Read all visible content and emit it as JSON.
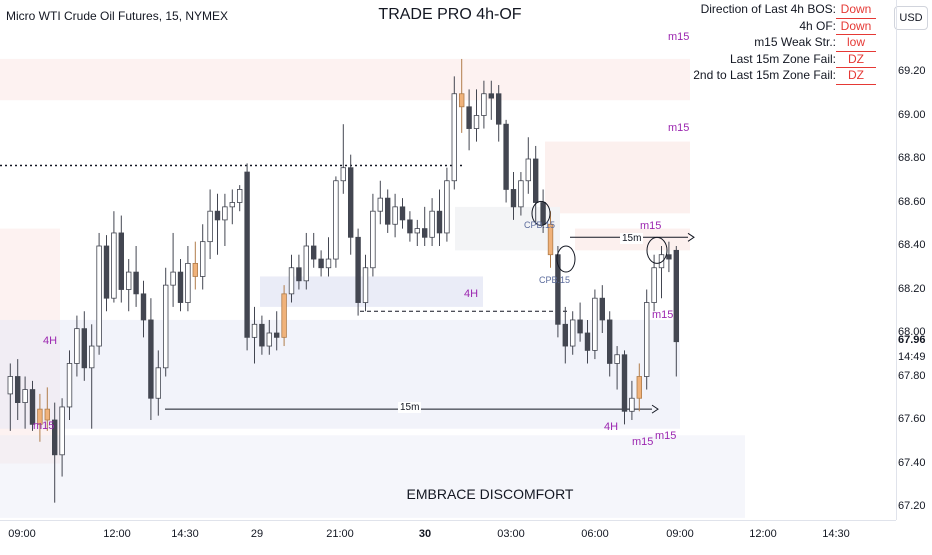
{
  "header": {
    "symbol": "Micro WTI Crude Oil Futures, 15, NYMEX",
    "indicator_title": "TRADE PRO 4h-OF",
    "currency": "USD"
  },
  "info_panel": [
    {
      "label": "Direction of Last 4h BOS:",
      "value": "Down"
    },
    {
      "label": "4h OF:",
      "value": "Down"
    },
    {
      "label": "m15 Weak Str.:",
      "value": "low"
    },
    {
      "label": "Last 15m Zone Fail:",
      "value": "DZ"
    },
    {
      "label": "2nd to Last 15m Zone Fail:",
      "value": "DZ"
    }
  ],
  "caption": "EMBRACE DISCOMFORT",
  "price_axis": {
    "ticks": [
      "69.20",
      "69.00",
      "68.80",
      "68.60",
      "68.40",
      "68.20",
      "68.00",
      "67.80",
      "67.60",
      "67.40",
      "67.20"
    ],
    "last_price": "67.96",
    "countdown": "14:49"
  },
  "time_axis": {
    "labels": [
      "09:00",
      "12:00",
      "14:30",
      "29",
      "21:00",
      "30",
      "03:00",
      "06:00",
      "09:00",
      "12:00",
      "14:30"
    ],
    "bold": [
      "30"
    ]
  },
  "annotations": {
    "m15": "m15",
    "h4": "4H",
    "m15_line": "15m",
    "cpb": "CPB.15"
  },
  "colors": {
    "up_candle_body": "#ffffff",
    "down_candle": "#434651",
    "highlight_candle": "#f0b27a",
    "supply_zone": "#fbe9e7",
    "demand_zone": "#e8eaf6",
    "label_purple": "#9c27b0",
    "value_red": "#e53935"
  },
  "chart_data": {
    "type": "candlestick",
    "title": "TRADE PRO 4h-OF",
    "ylim": [
      67.15,
      69.35
    ],
    "x_tick_labels": [
      "09:00",
      "12:00",
      "14:30",
      "29",
      "21:00",
      "30",
      "03:00",
      "06:00",
      "09:00",
      "12:00",
      "14:30"
    ],
    "last_price": 67.96,
    "candles": [
      {
        "o": 67.72,
        "h": 67.86,
        "l": 67.55,
        "c": 67.8
      },
      {
        "o": 67.8,
        "h": 67.88,
        "l": 67.6,
        "c": 67.68
      },
      {
        "o": 67.68,
        "h": 67.8,
        "l": 67.56,
        "c": 67.74
      },
      {
        "o": 67.74,
        "h": 67.78,
        "l": 67.55,
        "c": 67.58
      },
      {
        "o": 67.58,
        "h": 67.72,
        "l": 67.5,
        "c": 67.65
      },
      {
        "o": 67.65,
        "h": 67.75,
        "l": 67.55,
        "c": 67.6
      },
      {
        "o": 67.6,
        "h": 67.68,
        "l": 67.22,
        "c": 67.44
      },
      {
        "o": 67.44,
        "h": 67.7,
        "l": 67.34,
        "c": 67.66
      },
      {
        "o": 67.66,
        "h": 67.92,
        "l": 67.6,
        "c": 67.86
      },
      {
        "o": 67.86,
        "h": 68.08,
        "l": 67.8,
        "c": 68.02
      },
      {
        "o": 68.02,
        "h": 68.1,
        "l": 67.78,
        "c": 67.84
      },
      {
        "o": 67.84,
        "h": 68.04,
        "l": 67.56,
        "c": 67.94
      },
      {
        "o": 67.94,
        "h": 68.46,
        "l": 67.9,
        "c": 68.4
      },
      {
        "o": 68.4,
        "h": 68.45,
        "l": 68.1,
        "c": 68.16
      },
      {
        "o": 68.16,
        "h": 68.56,
        "l": 68.14,
        "c": 68.46
      },
      {
        "o": 68.46,
        "h": 68.54,
        "l": 68.14,
        "c": 68.2
      },
      {
        "o": 68.2,
        "h": 68.34,
        "l": 68.1,
        "c": 68.28
      },
      {
        "o": 68.28,
        "h": 68.4,
        "l": 68.12,
        "c": 68.18
      },
      {
        "o": 68.18,
        "h": 68.24,
        "l": 67.98,
        "c": 68.06
      },
      {
        "o": 68.06,
        "h": 68.16,
        "l": 67.6,
        "c": 67.7
      },
      {
        "o": 67.7,
        "h": 67.92,
        "l": 67.62,
        "c": 67.84
      },
      {
        "o": 67.84,
        "h": 68.3,
        "l": 67.8,
        "c": 68.22
      },
      {
        "o": 68.22,
        "h": 68.46,
        "l": 68.12,
        "c": 68.28
      },
      {
        "o": 68.28,
        "h": 68.34,
        "l": 68.1,
        "c": 68.14
      },
      {
        "o": 68.14,
        "h": 68.4,
        "l": 68.1,
        "c": 68.32
      },
      {
        "o": 68.32,
        "h": 68.42,
        "l": 68.2,
        "c": 68.26
      },
      {
        "o": 68.26,
        "h": 68.5,
        "l": 68.2,
        "c": 68.42
      },
      {
        "o": 68.42,
        "h": 68.66,
        "l": 68.34,
        "c": 68.56
      },
      {
        "o": 68.56,
        "h": 68.64,
        "l": 68.36,
        "c": 68.52
      },
      {
        "o": 68.52,
        "h": 68.64,
        "l": 68.4,
        "c": 68.58
      },
      {
        "o": 68.58,
        "h": 68.66,
        "l": 68.5,
        "c": 68.6
      },
      {
        "o": 68.6,
        "h": 68.68,
        "l": 68.56,
        "c": 68.66
      },
      {
        "o": 68.74,
        "h": 68.78,
        "l": 67.92,
        "c": 67.98
      },
      {
        "o": 67.98,
        "h": 68.12,
        "l": 67.86,
        "c": 68.04
      },
      {
        "o": 68.04,
        "h": 68.08,
        "l": 67.9,
        "c": 67.94
      },
      {
        "o": 67.94,
        "h": 68.06,
        "l": 67.9,
        "c": 68.0
      },
      {
        "o": 68.0,
        "h": 68.1,
        "l": 67.92,
        "c": 67.98
      },
      {
        "o": 67.98,
        "h": 68.22,
        "l": 67.94,
        "c": 68.18
      },
      {
        "o": 68.18,
        "h": 68.36,
        "l": 68.14,
        "c": 68.3
      },
      {
        "o": 68.3,
        "h": 68.36,
        "l": 68.2,
        "c": 68.24
      },
      {
        "o": 68.24,
        "h": 68.46,
        "l": 68.2,
        "c": 68.4
      },
      {
        "o": 68.4,
        "h": 68.46,
        "l": 68.3,
        "c": 68.34
      },
      {
        "o": 68.34,
        "h": 68.38,
        "l": 68.26,
        "c": 68.3
      },
      {
        "o": 68.3,
        "h": 68.44,
        "l": 68.26,
        "c": 68.34
      },
      {
        "o": 68.34,
        "h": 68.72,
        "l": 68.3,
        "c": 68.7
      },
      {
        "o": 68.7,
        "h": 68.96,
        "l": 68.64,
        "c": 68.76
      },
      {
        "o": 68.76,
        "h": 68.82,
        "l": 68.36,
        "c": 68.44
      },
      {
        "o": 68.44,
        "h": 68.48,
        "l": 68.08,
        "c": 68.14
      },
      {
        "o": 68.14,
        "h": 68.36,
        "l": 68.1,
        "c": 68.3
      },
      {
        "o": 68.3,
        "h": 68.64,
        "l": 68.26,
        "c": 68.56
      },
      {
        "o": 68.56,
        "h": 68.7,
        "l": 68.5,
        "c": 68.62
      },
      {
        "o": 68.62,
        "h": 68.66,
        "l": 68.46,
        "c": 68.5
      },
      {
        "o": 68.5,
        "h": 68.64,
        "l": 68.44,
        "c": 68.58
      },
      {
        "o": 68.58,
        "h": 68.62,
        "l": 68.48,
        "c": 68.52
      },
      {
        "o": 68.52,
        "h": 68.56,
        "l": 68.42,
        "c": 68.46
      },
      {
        "o": 68.46,
        "h": 68.52,
        "l": 68.4,
        "c": 68.48
      },
      {
        "o": 68.48,
        "h": 68.58,
        "l": 68.4,
        "c": 68.44
      },
      {
        "o": 68.44,
        "h": 68.62,
        "l": 68.4,
        "c": 68.56
      },
      {
        "o": 68.56,
        "h": 68.66,
        "l": 68.4,
        "c": 68.46
      },
      {
        "o": 68.46,
        "h": 68.76,
        "l": 68.42,
        "c": 68.7
      },
      {
        "o": 68.7,
        "h": 69.18,
        "l": 68.66,
        "c": 69.1
      },
      {
        "o": 69.1,
        "h": 69.26,
        "l": 68.92,
        "c": 69.04
      },
      {
        "o": 69.04,
        "h": 69.12,
        "l": 68.84,
        "c": 68.94
      },
      {
        "o": 68.94,
        "h": 69.12,
        "l": 68.88,
        "c": 69.0
      },
      {
        "o": 69.0,
        "h": 69.16,
        "l": 68.94,
        "c": 69.1
      },
      {
        "o": 69.1,
        "h": 69.16,
        "l": 68.98,
        "c": 69.08
      },
      {
        "o": 69.1,
        "h": 69.14,
        "l": 68.88,
        "c": 68.96
      },
      {
        "o": 68.96,
        "h": 68.98,
        "l": 68.6,
        "c": 68.66
      },
      {
        "o": 68.66,
        "h": 68.74,
        "l": 68.52,
        "c": 68.58
      },
      {
        "o": 68.58,
        "h": 68.74,
        "l": 68.54,
        "c": 68.7
      },
      {
        "o": 68.7,
        "h": 68.9,
        "l": 68.64,
        "c": 68.8
      },
      {
        "o": 68.8,
        "h": 68.86,
        "l": 68.5,
        "c": 68.6
      },
      {
        "o": 68.6,
        "h": 68.66,
        "l": 68.46,
        "c": 68.5
      },
      {
        "o": 68.5,
        "h": 68.56,
        "l": 68.3,
        "c": 68.36
      },
      {
        "o": 68.36,
        "h": 68.4,
        "l": 67.98,
        "c": 68.04
      },
      {
        "o": 68.04,
        "h": 68.12,
        "l": 67.86,
        "c": 67.94
      },
      {
        "o": 67.94,
        "h": 68.1,
        "l": 67.9,
        "c": 68.06
      },
      {
        "o": 68.06,
        "h": 68.14,
        "l": 67.96,
        "c": 68.0
      },
      {
        "o": 68.0,
        "h": 68.06,
        "l": 67.86,
        "c": 67.92
      },
      {
        "o": 67.92,
        "h": 68.2,
        "l": 67.88,
        "c": 68.16
      },
      {
        "o": 68.16,
        "h": 68.22,
        "l": 68.0,
        "c": 68.06
      },
      {
        "o": 68.06,
        "h": 68.1,
        "l": 67.8,
        "c": 67.86
      },
      {
        "o": 67.86,
        "h": 67.94,
        "l": 67.74,
        "c": 67.9
      },
      {
        "o": 67.9,
        "h": 67.92,
        "l": 67.58,
        "c": 67.64
      },
      {
        "o": 67.64,
        "h": 67.78,
        "l": 67.6,
        "c": 67.7
      },
      {
        "o": 67.7,
        "h": 67.86,
        "l": 67.64,
        "c": 67.8
      },
      {
        "o": 67.8,
        "h": 68.2,
        "l": 67.74,
        "c": 68.14
      },
      {
        "o": 68.14,
        "h": 68.36,
        "l": 68.1,
        "c": 68.3
      },
      {
        "o": 68.3,
        "h": 68.4,
        "l": 68.16,
        "c": 68.36
      },
      {
        "o": 68.36,
        "h": 68.42,
        "l": 68.28,
        "c": 68.34
      },
      {
        "o": 68.38,
        "h": 68.4,
        "l": 67.8,
        "c": 67.96
      }
    ],
    "highlighted_candles": [
      4,
      5,
      25,
      37,
      61,
      73,
      85
    ]
  }
}
